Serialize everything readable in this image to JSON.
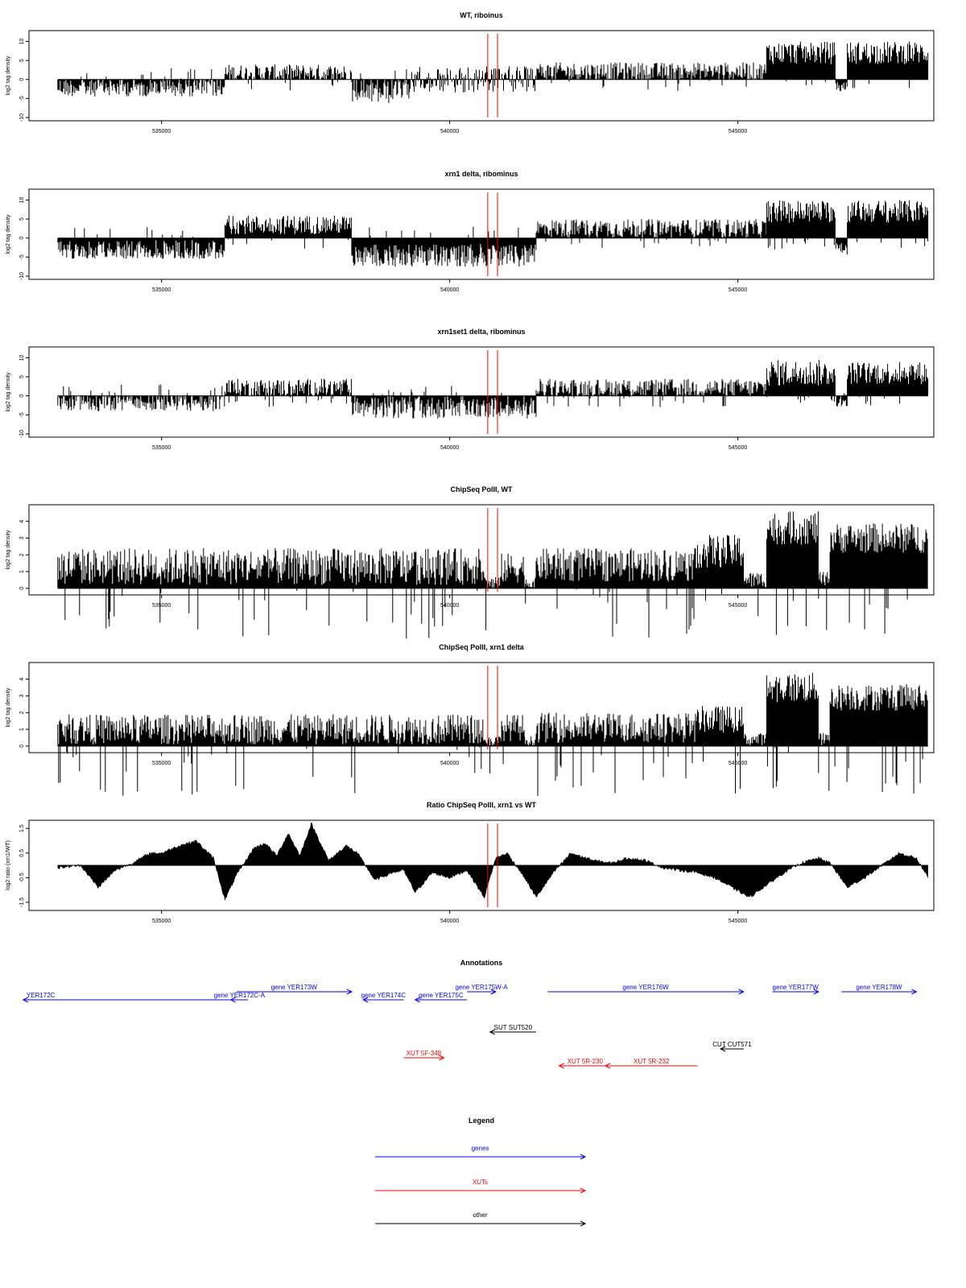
{
  "figure": {
    "background": "#ffffff"
  },
  "x_axis": {
    "ticks": [
      535000,
      540000,
      545000
    ],
    "tick_labels": [
      "535000",
      "540000",
      "545000"
    ],
    "xlim": [
      532700,
      548400
    ]
  },
  "markers": {
    "color": "#ff0000",
    "positions": [
      540660,
      540830
    ]
  },
  "chart_data": [
    {
      "type": "bar",
      "title": "WT, riboinus",
      "ylabel": "log2 tag density",
      "ylim": [
        -10,
        12
      ],
      "yticks": [
        10,
        5,
        0,
        -5,
        -10
      ],
      "ytick_labels": [
        "10",
        "5",
        "0",
        "-5",
        "-10"
      ],
      "grid": false,
      "segments": [
        {
          "x": [
            533200,
            536100
          ],
          "direction": "neg",
          "level": 2,
          "amp": 2.5
        },
        {
          "x": [
            536100,
            538300
          ],
          "direction": "pos",
          "level": 1.5,
          "amp": 2.5
        },
        {
          "x": [
            538300,
            539300
          ],
          "direction": "neg",
          "level": 3,
          "amp": 3.5
        },
        {
          "x": [
            539300,
            541500
          ],
          "direction": "mix",
          "level": 1.5,
          "amp": 2
        },
        {
          "x": [
            541500,
            545500
          ],
          "direction": "pos",
          "level": 2,
          "amp": 2.5
        },
        {
          "x": [
            545500,
            546700
          ],
          "direction": "pos",
          "level": 7,
          "amp": 3
        },
        {
          "x": [
            546700,
            546900
          ],
          "direction": "neg",
          "level": 2,
          "amp": 1.5
        },
        {
          "x": [
            546900,
            548300
          ],
          "direction": "pos",
          "level": 7,
          "amp": 3
        }
      ]
    },
    {
      "type": "bar",
      "title": "xrn1 delta, ribominus",
      "ylabel": "log2 tag density",
      "ylim": [
        -10,
        12
      ],
      "yticks": [
        10,
        5,
        0,
        -5,
        -10
      ],
      "ytick_labels": [
        "10",
        "5",
        "0",
        "-5",
        "-10"
      ],
      "grid": false,
      "segments": [
        {
          "x": [
            533200,
            536100
          ],
          "direction": "neg",
          "level": 3,
          "amp": 2.5
        },
        {
          "x": [
            536100,
            538300
          ],
          "direction": "pos",
          "level": 3.5,
          "amp": 2.5
        },
        {
          "x": [
            538300,
            541500
          ],
          "direction": "neg",
          "level": 4.5,
          "amp": 3
        },
        {
          "x": [
            541500,
            545500
          ],
          "direction": "pos",
          "level": 2.5,
          "amp": 2.5
        },
        {
          "x": [
            545500,
            546700
          ],
          "direction": "pos",
          "level": 7,
          "amp": 3
        },
        {
          "x": [
            546700,
            546900
          ],
          "direction": "neg",
          "level": 3,
          "amp": 2
        },
        {
          "x": [
            546900,
            548300
          ],
          "direction": "pos",
          "level": 7,
          "amp": 3
        }
      ]
    },
    {
      "type": "bar",
      "title": "xrn1set1 delta, ribominus",
      "ylabel": "log2 tag density",
      "ylim": [
        -10,
        12
      ],
      "yticks": [
        10,
        5,
        0,
        -5,
        -10
      ],
      "ytick_labels": [
        "10",
        "5",
        "0",
        "-5",
        "-10"
      ],
      "grid": false,
      "segments": [
        {
          "x": [
            533200,
            536100
          ],
          "direction": "neg",
          "level": 1.5,
          "amp": 2.5
        },
        {
          "x": [
            536100,
            538300
          ],
          "direction": "pos",
          "level": 2,
          "amp": 2.5
        },
        {
          "x": [
            538300,
            541500
          ],
          "direction": "neg",
          "level": 3,
          "amp": 3
        },
        {
          "x": [
            541500,
            545500
          ],
          "direction": "pos",
          "level": 2,
          "amp": 2.5
        },
        {
          "x": [
            545500,
            546700
          ],
          "direction": "pos",
          "level": 6,
          "amp": 3.5
        },
        {
          "x": [
            546700,
            546900
          ],
          "direction": "neg",
          "level": 1.5,
          "amp": 1.5
        },
        {
          "x": [
            546900,
            548300
          ],
          "direction": "pos",
          "level": 6,
          "amp": 3
        }
      ]
    },
    {
      "type": "bar",
      "title": "ChipSeq PolII, WT",
      "ylabel": "log2 tag density",
      "ylim": [
        -0.2,
        4.8
      ],
      "yticks": [
        0,
        1,
        2,
        3,
        4
      ],
      "ytick_labels": [
        "0",
        "1",
        "2",
        "3",
        "4"
      ],
      "grid": false,
      "segments": [
        {
          "x": [
            533200,
            540600
          ],
          "direction": "pos",
          "level": 1.3,
          "amp": 1.1
        },
        {
          "x": [
            540600,
            540900
          ],
          "direction": "pos",
          "level": 0.3,
          "amp": 0.5
        },
        {
          "x": [
            540900,
            541300
          ],
          "direction": "pos",
          "level": 1.2,
          "amp": 0.9
        },
        {
          "x": [
            541300,
            541500
          ],
          "direction": "pos",
          "level": 0.3,
          "amp": 0.4
        },
        {
          "x": [
            541500,
            544300
          ],
          "direction": "pos",
          "level": 1.4,
          "amp": 1.0
        },
        {
          "x": [
            544300,
            545100
          ],
          "direction": "pos",
          "level": 2.2,
          "amp": 1.0
        },
        {
          "x": [
            545100,
            545500
          ],
          "direction": "pos",
          "level": 0.5,
          "amp": 0.5
        },
        {
          "x": [
            545500,
            546400
          ],
          "direction": "pos",
          "level": 3.6,
          "amp": 1.0
        },
        {
          "x": [
            546400,
            546600
          ],
          "direction": "pos",
          "level": 0.5,
          "amp": 0.5
        },
        {
          "x": [
            546600,
            548300
          ],
          "direction": "pos",
          "level": 3.0,
          "amp": 0.9
        }
      ]
    },
    {
      "type": "bar",
      "title": "ChipSeq PolII, xrn1 delta",
      "ylabel": "log2 tag density",
      "ylim": [
        -0.2,
        4.8
      ],
      "yticks": [
        0,
        1,
        2,
        3,
        4
      ],
      "ytick_labels": [
        "0",
        "1",
        "2",
        "3",
        "4"
      ],
      "grid": false,
      "segments": [
        {
          "x": [
            533200,
            540600
          ],
          "direction": "pos",
          "level": 1.0,
          "amp": 0.9
        },
        {
          "x": [
            540600,
            540900
          ],
          "direction": "pos",
          "level": 0.3,
          "amp": 0.3
        },
        {
          "x": [
            540900,
            541300
          ],
          "direction": "pos",
          "level": 1.1,
          "amp": 0.8
        },
        {
          "x": [
            541300,
            541500
          ],
          "direction": "pos",
          "level": 0.3,
          "amp": 0.3
        },
        {
          "x": [
            541500,
            544300
          ],
          "direction": "pos",
          "level": 1.1,
          "amp": 0.9
        },
        {
          "x": [
            544300,
            545100
          ],
          "direction": "pos",
          "level": 1.6,
          "amp": 0.8
        },
        {
          "x": [
            545100,
            545500
          ],
          "direction": "pos",
          "level": 0.4,
          "amp": 0.4
        },
        {
          "x": [
            545500,
            546400
          ],
          "direction": "pos",
          "level": 3.5,
          "amp": 0.9
        },
        {
          "x": [
            546400,
            546600
          ],
          "direction": "pos",
          "level": 0.4,
          "amp": 0.4
        },
        {
          "x": [
            546600,
            548300
          ],
          "direction": "pos",
          "level": 2.9,
          "amp": 0.8
        }
      ]
    },
    {
      "type": "area",
      "title": "Ratio ChipSeq PolII, xrn1 vs WT",
      "ylabel": "log2 ratio (xrn1/WT)",
      "ylim": [
        -1.7,
        1.7
      ],
      "yticks": [
        1.5,
        0.5,
        -0.5,
        -1.5
      ],
      "ytick_labels": [
        "1.5",
        "0.5",
        "-0.5",
        "-1.5"
      ],
      "grid": false,
      "x": [
        533200,
        533600,
        533900,
        534200,
        534500,
        534800,
        535000,
        535300,
        535600,
        535900,
        536100,
        536300,
        536600,
        536800,
        537000,
        537200,
        537400,
        537600,
        537900,
        538200,
        538400,
        538700,
        539000,
        539200,
        539400,
        539700,
        540000,
        540300,
        540600,
        540800,
        541000,
        541300,
        541500,
        541800,
        542100,
        542500,
        542800,
        543100,
        543400,
        543700,
        544000,
        544300,
        544600,
        544900,
        545200,
        545500,
        545800,
        546100,
        546400,
        546600,
        546900,
        547200,
        547500,
        547800,
        548100,
        548300
      ],
      "values": [
        -0.1,
        0.0,
        -0.9,
        -0.2,
        0.1,
        0.5,
        0.5,
        0.8,
        1.0,
        0.3,
        -1.4,
        -0.4,
        0.7,
        0.9,
        0.4,
        1.3,
        0.4,
        1.7,
        0.2,
        0.8,
        0.5,
        -0.6,
        -0.3,
        -0.2,
        -1.1,
        -0.3,
        -0.5,
        -0.2,
        -1.3,
        0.3,
        0.5,
        -0.5,
        -1.3,
        -0.3,
        0.5,
        0.2,
        0.1,
        0.3,
        0.2,
        -0.1,
        -0.2,
        -0.3,
        -0.5,
        -0.9,
        -1.3,
        -0.8,
        -0.3,
        0.1,
        0.3,
        0.1,
        -0.9,
        -0.5,
        0.0,
        0.5,
        0.3,
        -0.5
      ]
    }
  ],
  "annotations": {
    "title": "Annotations",
    "rows": [
      {
        "x1": 532600,
        "x2": 536300,
        "dir": "rev",
        "label": "YER172C",
        "color": "#0000ff",
        "row": 1,
        "label_pos": "start"
      },
      {
        "x1": 536200,
        "x2": 536500,
        "dir": "rev",
        "label": "gene YER172C-A",
        "color": "#0000ff",
        "row": 1,
        "label_pos": "center"
      },
      {
        "x1": 536300,
        "x2": 538300,
        "dir": "fwd",
        "label": "gene YER173W",
        "color": "#0000ff",
        "row": 0,
        "label_pos": "center"
      },
      {
        "x1": 538500,
        "x2": 539200,
        "dir": "rev",
        "label": "gene YER174C",
        "color": "#0000ff",
        "row": 1,
        "label_pos": "center"
      },
      {
        "x1": 539400,
        "x2": 540300,
        "dir": "rev",
        "label": "gene YER175C",
        "color": "#0000ff",
        "row": 1,
        "label_pos": "center"
      },
      {
        "x1": 540300,
        "x2": 540800,
        "dir": "fwd",
        "label": "gene YER175W-A",
        "color": "#0000ff",
        "row": 0,
        "label_pos": "center"
      },
      {
        "x1": 541700,
        "x2": 545100,
        "dir": "fwd",
        "label": "gene YER176W",
        "color": "#0000ff",
        "row": 0,
        "label_pos": "center"
      },
      {
        "x1": 545600,
        "x2": 546400,
        "dir": "fwd",
        "label": "gene YER177W",
        "color": "#0000ff",
        "row": 0,
        "label_pos": "center"
      },
      {
        "x1": 546800,
        "x2": 548100,
        "dir": "fwd",
        "label": "gene YER178W",
        "color": "#0000ff",
        "row": 0,
        "label_pos": "center"
      },
      {
        "x1": 540700,
        "x2": 541500,
        "dir": "rev",
        "label": "SUT SUT520",
        "color": "#000000",
        "row": 2,
        "label_pos": "center"
      },
      {
        "x1": 544700,
        "x2": 545100,
        "dir": "rev",
        "label": "CUT CUT571",
        "color": "#000000",
        "row": 3,
        "label_pos": "center"
      },
      {
        "x1": 539200,
        "x2": 539900,
        "dir": "fwd",
        "label": "XUT 5F-348",
        "color": "#ff0000",
        "row": 4,
        "label_pos": "center"
      },
      {
        "x1": 541900,
        "x2": 542800,
        "dir": "rev",
        "label": "XUT 5R-230",
        "color": "#ff0000",
        "row": 5,
        "label_pos": "center"
      },
      {
        "x1": 542700,
        "x2": 544300,
        "dir": "rev",
        "label": "XUT 5R-232",
        "color": "#ff0000",
        "row": 5,
        "label_pos": "center"
      }
    ]
  },
  "legend": {
    "title": "Legend",
    "items": [
      {
        "label": "genes",
        "color": "#0000ff"
      },
      {
        "label": "XUTs",
        "color": "#ff0000"
      },
      {
        "label": "other",
        "color": "#000000"
      }
    ]
  }
}
